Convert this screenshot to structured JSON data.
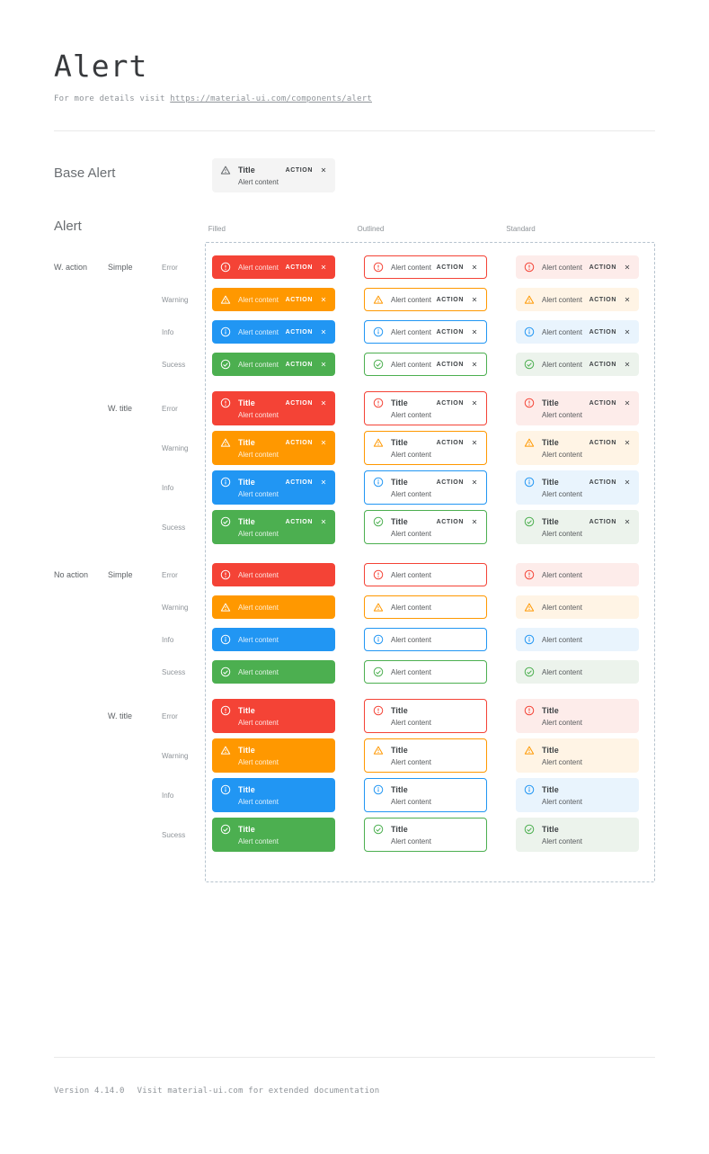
{
  "page": {
    "title": "Alert",
    "subtitle_prefix": "For more details visit ",
    "subtitle_link": "https://material-ui.com/components/alert",
    "footer_version": "Version 4.14.0",
    "footer_note": "Visit material-ui.com for extended documentation"
  },
  "base_alert_section": {
    "label": "Base Alert",
    "alert": {
      "title": "Title",
      "content": "Alert content",
      "action": "ACTION"
    }
  },
  "alert_section": {
    "label": "Alert",
    "columns": [
      "Filled",
      "Outlined",
      "Standard"
    ],
    "row_groups": [
      {
        "action_label": "W. action",
        "subgroups": [
          {
            "label": "Simple",
            "with_title": false,
            "with_action": true
          },
          {
            "label": "W. title",
            "with_title": true,
            "with_action": true
          }
        ]
      },
      {
        "action_label": "No action",
        "subgroups": [
          {
            "label": "Simple",
            "with_title": false,
            "with_action": false
          },
          {
            "label": "W. title",
            "with_title": true,
            "with_action": false
          }
        ]
      }
    ],
    "severities": [
      {
        "label": "Error",
        "key": "error",
        "color": "#f44336",
        "standard_bg": "#fdecea"
      },
      {
        "label": "Warning",
        "key": "warning",
        "color": "#ff9800",
        "standard_bg": "#fff4e5"
      },
      {
        "label": "Info",
        "key": "info",
        "color": "#2196f3",
        "standard_bg": "#e9f4fd"
      },
      {
        "label": "Sucess",
        "key": "success",
        "color": "#4caf50",
        "standard_bg": "#ecf3ec"
      }
    ],
    "alert_text": {
      "title": "Title",
      "content": "Alert content",
      "action": "ACTION"
    }
  },
  "icons": {
    "error": "error-outline-circle",
    "warning": "warning-triangle",
    "info": "info-outline-circle",
    "success": "check-circle-outline",
    "close": "close-x"
  },
  "colors": {
    "filled_text": "#ffffff",
    "dark_text": "#3f4346",
    "base_alert_bg": "#f4f4f4",
    "dashed_border": "#b6c3ce",
    "muted_text": "#8e9398"
  }
}
